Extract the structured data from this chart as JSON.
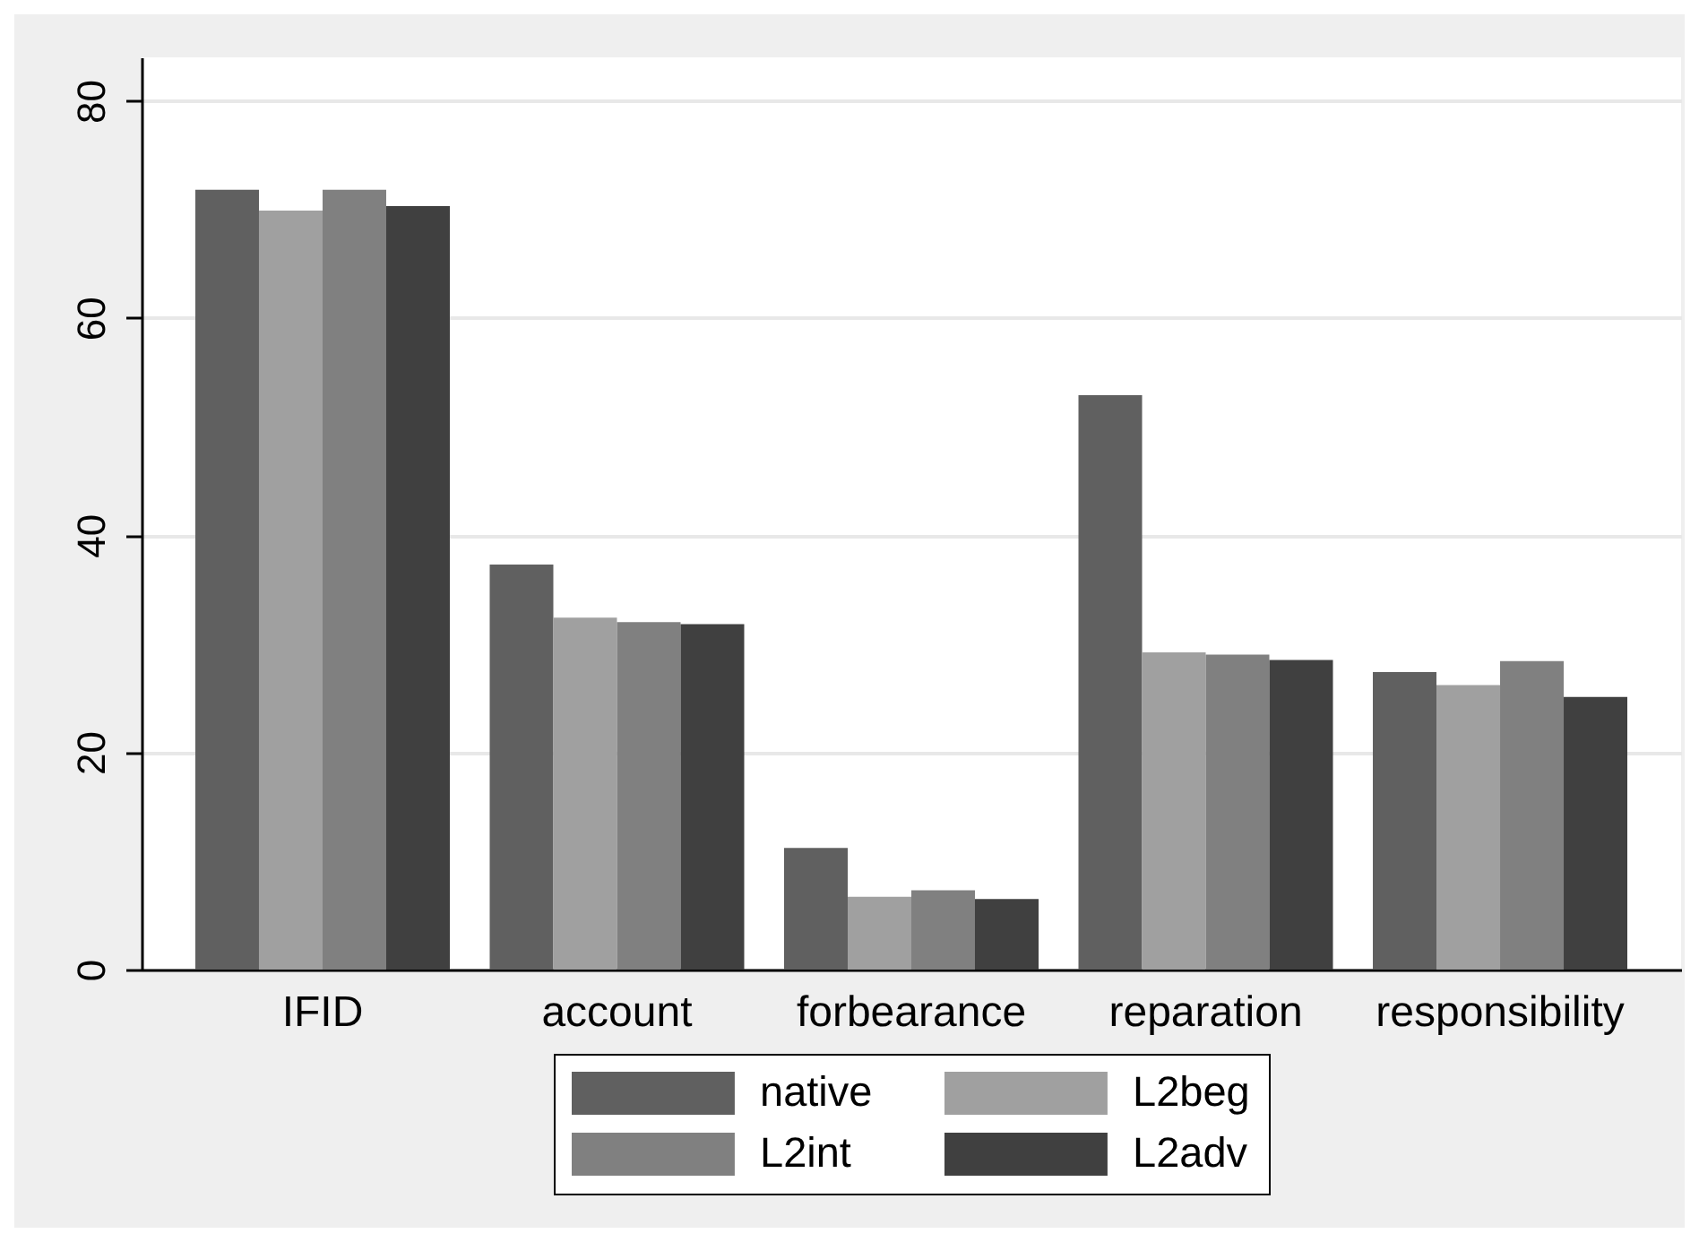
{
  "chart_data": {
    "type": "bar",
    "categories": [
      "IFID",
      "account",
      "forbearance",
      "reparation",
      "responsibility"
    ],
    "series": [
      {
        "name": "native",
        "color": "#606060",
        "values": [
          71.8,
          37.3,
          11.2,
          52.9,
          27.4
        ]
      },
      {
        "name": "L2beg",
        "color": "#a0a0a0",
        "values": [
          69.9,
          32.4,
          6.7,
          29.2,
          26.2
        ]
      },
      {
        "name": "L2int",
        "color": "#808080",
        "values": [
          71.8,
          32.0,
          7.3,
          29.0,
          28.4
        ]
      },
      {
        "name": "L2adv",
        "color": "#404040",
        "values": [
          70.3,
          31.8,
          6.5,
          28.5,
          25.1
        ]
      }
    ],
    "ylim": [
      0,
      84
    ],
    "yticks": [
      0,
      20,
      40,
      60,
      80
    ],
    "grid": "y",
    "legend": "bottom"
  }
}
